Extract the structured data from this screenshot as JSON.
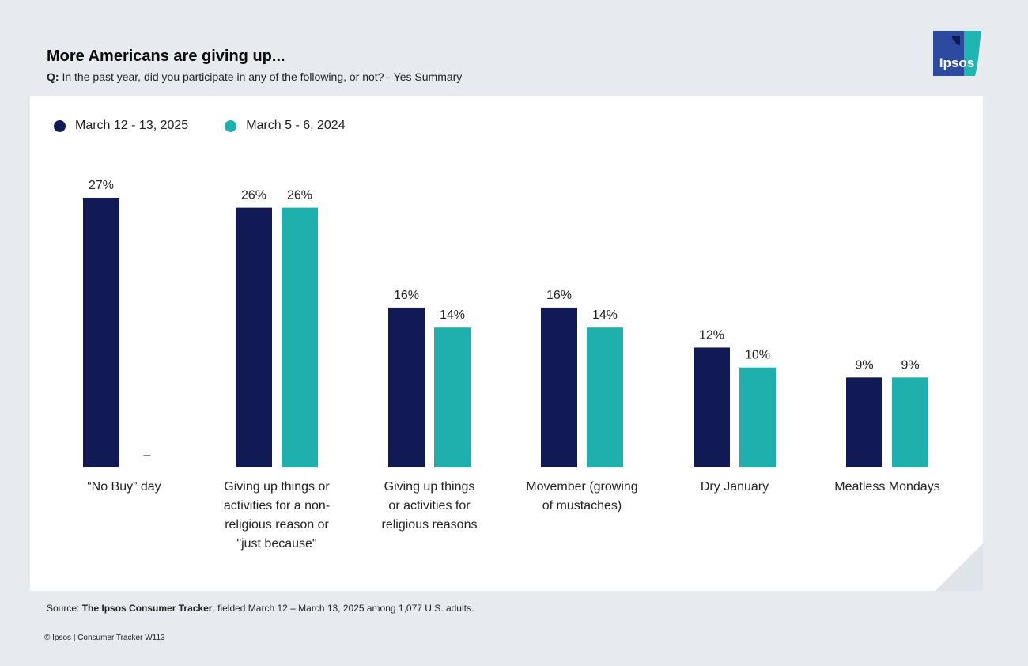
{
  "header": {
    "title": "More Americans are giving up...",
    "question_prefix": "Q:",
    "question": " In the past year, did you participate in any of the following, or not? - Yes Summary"
  },
  "logo": {
    "text": "Ipsos",
    "colors": [
      "#2c4aa0",
      "#1fb5b0"
    ]
  },
  "legend": [
    {
      "label": "March 12 - 13, 2025",
      "color": "#121a55"
    },
    {
      "label": "March 5 - 6, 2024",
      "color": "#1fb0ae"
    }
  ],
  "chart_data": {
    "type": "bar",
    "categories": [
      [
        "“No Buy” day"
      ],
      [
        "Giving up things or",
        "activities for a non-",
        "religious reason or",
        "\"just because\""
      ],
      [
        "Giving up things",
        "or activities for",
        "religious reasons"
      ],
      [
        "Movember (growing",
        "of mustaches)"
      ],
      [
        "Dry January"
      ],
      [
        "Meatless Mondays"
      ]
    ],
    "series": [
      {
        "name": "March 12 - 13, 2025",
        "values": [
          27,
          26,
          16,
          16,
          12,
          9
        ],
        "labels": [
          "27%",
          "26%",
          "16%",
          "16%",
          "12%",
          "9%"
        ],
        "color": "#121a55"
      },
      {
        "name": "March 5 - 6, 2024",
        "values": [
          null,
          26,
          14,
          14,
          10,
          9
        ],
        "labels": [
          "–",
          "26%",
          "14%",
          "14%",
          "10%",
          "9%"
        ],
        "color": "#1fb0ae"
      }
    ],
    "ylim": [
      0,
      27
    ],
    "grid": false,
    "legend_position": "top-left"
  },
  "footer": {
    "source_prefix": "Source: ",
    "source_bold": "The Ipsos Consumer Tracker",
    "source_rest": ", fielded March 12 – March 13, 2025 among 1,077 U.S. adults.",
    "copyright": "© Ipsos | Consumer Tracker W113"
  }
}
